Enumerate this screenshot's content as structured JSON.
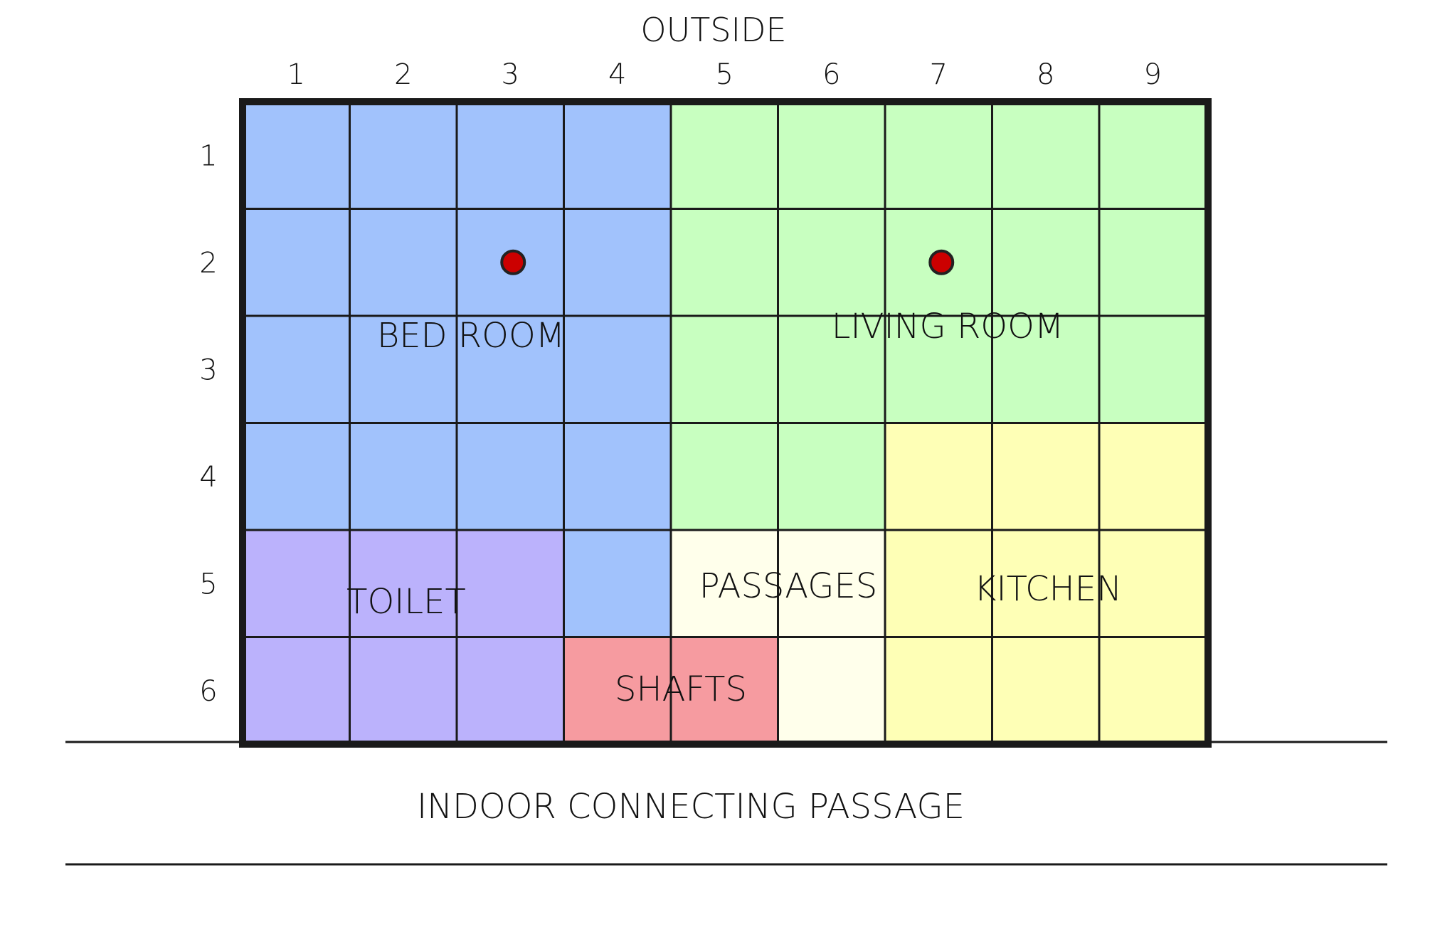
{
  "header": {
    "title": "OUTSIDE"
  },
  "footer": {
    "label": "INDOOR CONNECTING PASSAGE"
  },
  "grid": {
    "columns": [
      "1",
      "2",
      "3",
      "4",
      "5",
      "6",
      "7",
      "8",
      "9"
    ],
    "rows": [
      "1",
      "2",
      "3",
      "4",
      "5",
      "6"
    ],
    "cells": [
      [
        "bed",
        "bed",
        "bed",
        "bed",
        "living",
        "living",
        "living",
        "living",
        "living"
      ],
      [
        "bed",
        "bed",
        "bed",
        "bed",
        "living",
        "living",
        "living",
        "living",
        "living"
      ],
      [
        "bed",
        "bed",
        "bed",
        "bed",
        "living",
        "living",
        "living",
        "living",
        "living"
      ],
      [
        "bed",
        "bed",
        "bed",
        "bed",
        "living",
        "living",
        "kitchen",
        "kitchen",
        "kitchen"
      ],
      [
        "toilet",
        "toilet",
        "toilet",
        "bed",
        "passages",
        "passages",
        "kitchen",
        "kitchen",
        "kitchen"
      ],
      [
        "toilet",
        "toilet",
        "toilet",
        "shafts",
        "shafts",
        "passages",
        "kitchen",
        "kitchen",
        "kitchen"
      ]
    ]
  },
  "zones": {
    "bed": {
      "label": "BED ROOM",
      "color": "#a1c2fc"
    },
    "living": {
      "label": "LIVING ROOM",
      "color": "#c8ffc0"
    },
    "kitchen": {
      "label": "KITCHEN",
      "color": "#feffb6"
    },
    "toilet": {
      "label": "TOILET",
      "color": "#bbb2fc"
    },
    "shafts": {
      "label": "SHAFTS",
      "color": "#f69ba0"
    },
    "passages": {
      "label": "PASSAGES",
      "color": "#ffffeb"
    }
  },
  "markers": [
    {
      "name": "bed-room-marker",
      "row": "2",
      "column": "3",
      "color": "#cc0000"
    },
    {
      "name": "living-room-marker",
      "row": "2",
      "column": "7",
      "color": "#cc0000"
    }
  ]
}
